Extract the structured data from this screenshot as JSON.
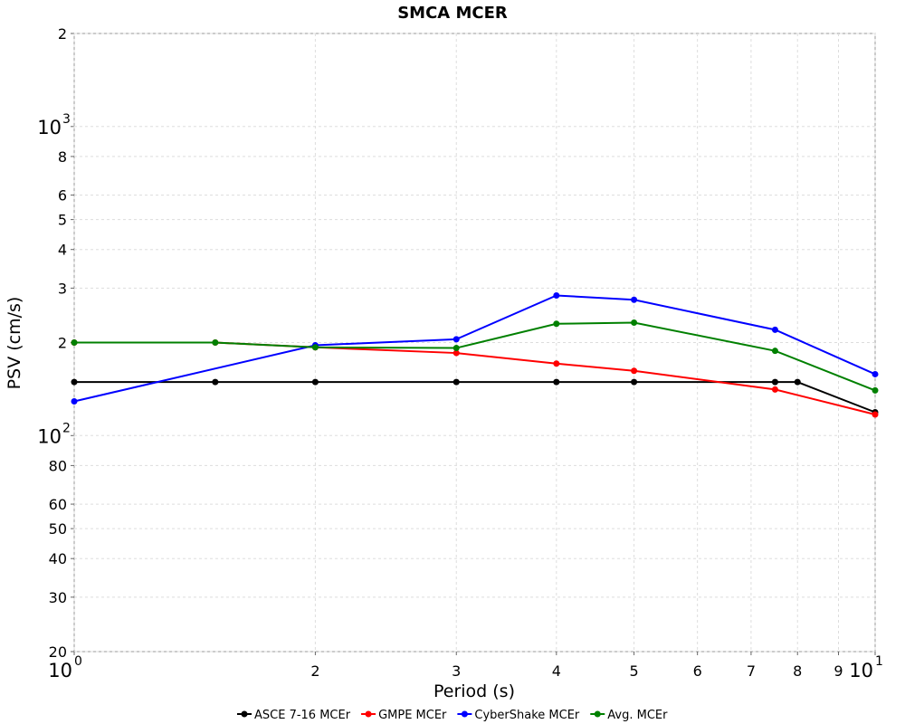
{
  "chart_data": {
    "type": "line",
    "title": "SMCA MCER",
    "xlabel": "Period (s)",
    "ylabel": "PSV (cm/s)",
    "xscale": "log",
    "yscale": "log",
    "grid": true,
    "legend": "bottom",
    "xlim": [
      1,
      10
    ],
    "ylim": [
      20,
      2000
    ],
    "xticks": [
      {
        "value": 1,
        "label": "10",
        "superscript": "0"
      },
      2,
      3,
      4,
      5,
      6,
      7,
      8,
      9,
      {
        "value": 10,
        "label": "10",
        "superscript": "1"
      }
    ],
    "yticks": [
      20,
      30,
      40,
      50,
      60,
      80,
      {
        "value": 100,
        "label": "10",
        "superscript": "2"
      },
      {
        "value": 200,
        "label": "2"
      },
      {
        "value": 300,
        "label": "3"
      },
      {
        "value": 400,
        "label": "4"
      },
      {
        "value": 500,
        "label": "5"
      },
      {
        "value": 600,
        "label": "6"
      },
      {
        "value": 800,
        "label": "8"
      },
      {
        "value": 1000,
        "label": "10",
        "superscript": "3"
      },
      {
        "value": 2000,
        "label": "2"
      }
    ],
    "series": [
      {
        "name": "ASCE 7-16 MCEr",
        "color": "#000000",
        "x": [
          1,
          1.5,
          2,
          3,
          4,
          5,
          7.5,
          8,
          10
        ],
        "values": [
          149,
          149,
          149,
          149,
          149,
          149,
          149,
          149,
          119
        ]
      },
      {
        "name": "GMPE MCEr",
        "color": "#ff0000",
        "x": [
          1,
          1.5,
          2,
          3,
          4,
          5,
          7.5,
          10
        ],
        "values": [
          200,
          200,
          193,
          185,
          171,
          162,
          141,
          117
        ]
      },
      {
        "name": "CyberShake MCEr",
        "color": "#0000ff",
        "x": [
          1,
          2,
          3,
          4,
          5,
          7.5,
          10
        ],
        "values": [
          129,
          196,
          205,
          284,
          275,
          220,
          158
        ]
      },
      {
        "name": "Avg. MCEr",
        "color": "#008000",
        "x": [
          1,
          1.5,
          2,
          3,
          4,
          5,
          7.5,
          10
        ],
        "values": [
          200,
          200,
          193,
          192,
          230,
          232,
          188,
          140
        ]
      }
    ]
  }
}
